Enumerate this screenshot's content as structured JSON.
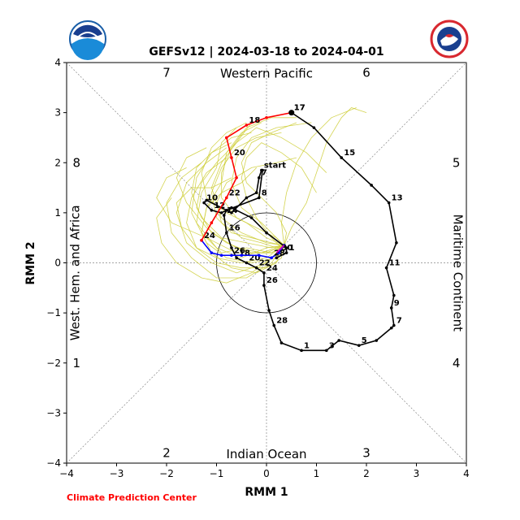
{
  "title": "GEFSv12 | 2024-03-18 to 2024-04-01",
  "credit": "Climate Prediction Center",
  "logos": {
    "left": {
      "text": "NOAA",
      "color": "#1a8bd8"
    },
    "right": {
      "text": "NATIONAL WEATHER SERVICE",
      "color": "#d8282f"
    }
  },
  "chart_data": {
    "type": "line",
    "xlabel": "RMM 1",
    "ylabel": "RMM 2",
    "xlim": [
      -4,
      4
    ],
    "ylim": [
      -4,
      4
    ],
    "xticks": [
      "−4",
      "−3",
      "−2",
      "−1",
      "0",
      "1",
      "2",
      "3",
      "4"
    ],
    "yticks": [
      "−4",
      "−3",
      "−2",
      "−1",
      "0",
      "1",
      "2",
      "3",
      "4"
    ],
    "grid": false,
    "unit_circle_radius": 1,
    "regions": {
      "top": "Western Pacific",
      "bottom": "Indian Ocean",
      "left": "West. Hem. and Africa",
      "right": "Maritime Continent"
    },
    "phases": [
      {
        "label": "1",
        "x": -3.8,
        "y": -2.0
      },
      {
        "label": "2",
        "x": -2.0,
        "y": -3.8
      },
      {
        "label": "3",
        "x": 2.0,
        "y": -3.8
      },
      {
        "label": "4",
        "x": 3.8,
        "y": -2.0
      },
      {
        "label": "5",
        "x": 3.8,
        "y": 2.0
      },
      {
        "label": "6",
        "x": 2.0,
        "y": 3.8
      },
      {
        "label": "7",
        "x": -2.0,
        "y": 3.8
      },
      {
        "label": "8",
        "x": -3.8,
        "y": 2.0
      }
    ],
    "colors": {
      "observed": "#000000",
      "forecast_week1": "#0000ff",
      "forecast_week2": "#ff0000",
      "ensemble": "#cccc33",
      "start_segment": "#cc00cc"
    },
    "series": [
      {
        "role": "observed",
        "points": [
          [
            0.2,
            0.1
          ],
          [
            0.4,
            0.2
          ],
          [
            0.4,
            0.3
          ],
          [
            0.0,
            0.6
          ],
          [
            -0.3,
            0.9
          ],
          [
            -0.7,
            1.1
          ],
          [
            -0.9,
            1.0
          ],
          [
            -1.1,
            1.05
          ],
          [
            -1.25,
            1.2
          ],
          [
            -1.2,
            1.25
          ],
          [
            -0.7,
            1.0
          ],
          [
            -0.4,
            1.3
          ],
          [
            -0.2,
            1.4
          ],
          [
            -0.15,
            1.7
          ],
          [
            -0.1,
            1.85
          ],
          [
            -0.08,
            1.85
          ],
          [
            -0.15,
            1.3
          ],
          [
            -0.8,
            1.05
          ],
          [
            -0.85,
            0.95
          ],
          [
            -0.8,
            0.6
          ],
          [
            -0.7,
            0.3
          ],
          [
            -0.6,
            0.1
          ],
          [
            -0.4,
            0.0
          ],
          [
            -0.2,
            -0.1
          ],
          [
            -0.05,
            -0.2
          ],
          [
            -0.05,
            -0.45
          ],
          [
            0.05,
            -0.95
          ],
          [
            0.15,
            -1.25
          ],
          [
            0.3,
            -1.6
          ],
          [
            0.7,
            -1.75
          ],
          [
            1.2,
            -1.75
          ],
          [
            1.45,
            -1.55
          ],
          [
            1.85,
            -1.65
          ],
          [
            2.2,
            -1.55
          ],
          [
            2.5,
            -1.3
          ],
          [
            2.55,
            -1.25
          ],
          [
            2.5,
            -0.9
          ],
          [
            2.55,
            -0.65
          ],
          [
            2.4,
            -0.1
          ],
          [
            2.6,
            0.4
          ],
          [
            2.45,
            1.2
          ],
          [
            2.1,
            1.55
          ],
          [
            1.5,
            2.1
          ],
          [
            0.95,
            2.7
          ],
          [
            0.5,
            3.0
          ]
        ],
        "labels": [
          {
            "text": "1",
            "at": 1
          },
          {
            "text": "start",
            "at": 14
          },
          {
            "text": "7",
            "at": 13
          },
          {
            "text": "8",
            "at": 16
          },
          {
            "text": "10",
            "at": 8
          },
          {
            "text": "12",
            "at": 7
          },
          {
            "text": "14",
            "at": 18
          },
          {
            "text": "16",
            "at": 19
          },
          {
            "text": "18",
            "at": 21
          },
          {
            "text": "20",
            "at": 22
          },
          {
            "text": "22",
            "at": 23
          },
          {
            "text": "24",
            "at": 24
          },
          {
            "text": "26",
            "at": 25
          },
          {
            "text": "28",
            "at": 27
          },
          {
            "text": "1",
            "at": 29
          },
          {
            "text": "3",
            "at": 30
          },
          {
            "text": "5",
            "at": 32
          },
          {
            "text": "7",
            "at": 35
          },
          {
            "text": "9",
            "at": 36
          },
          {
            "text": "11",
            "at": 38
          },
          {
            "text": "13",
            "at": 40
          },
          {
            "text": "15",
            "at": 42
          },
          {
            "text": "17",
            "at": 44
          }
        ]
      },
      {
        "role": "forecast_week1",
        "points": [
          [
            0.35,
            0.35
          ],
          [
            0.25,
            0.2
          ],
          [
            0.1,
            0.1
          ],
          [
            -0.15,
            0.15
          ],
          [
            -0.5,
            0.15
          ],
          [
            -0.7,
            0.15
          ],
          [
            -0.9,
            0.15
          ],
          [
            -1.1,
            0.2
          ],
          [
            -1.3,
            0.45
          ]
        ],
        "labels": [
          {
            "text": "30",
            "at": 1
          },
          {
            "text": "28",
            "at": 2
          },
          {
            "text": "26",
            "at": 5
          },
          {
            "text": "24",
            "at": 8
          }
        ]
      },
      {
        "role": "forecast_week2",
        "points": [
          [
            -1.3,
            0.45
          ],
          [
            -1.1,
            0.8
          ],
          [
            -0.8,
            1.3
          ],
          [
            -0.6,
            1.7
          ],
          [
            -0.7,
            2.1
          ],
          [
            -0.8,
            2.5
          ],
          [
            -0.4,
            2.75
          ],
          [
            0.0,
            2.9
          ],
          [
            0.5,
            3.0
          ]
        ],
        "labels": [
          {
            "text": "22",
            "at": 2
          },
          {
            "text": "20",
            "at": 4
          },
          {
            "text": "18",
            "at": 6
          },
          {
            "text": "17",
            "at": 8
          }
        ]
      },
      {
        "role": "start_segment",
        "points": [
          [
            0.35,
            0.35
          ],
          [
            0.2,
            0.2
          ]
        ]
      }
    ],
    "ensemble_members": [
      [
        [
          0.35,
          0.35
        ],
        [
          0.1,
          0.2
        ],
        [
          -0.4,
          0.3
        ],
        [
          -0.9,
          0.2
        ],
        [
          -1.3,
          0.6
        ],
        [
          -1.2,
          1.1
        ],
        [
          -0.9,
          1.6
        ],
        [
          -0.8,
          2.2
        ],
        [
          -0.5,
          2.6
        ],
        [
          -0.1,
          2.8
        ]
      ],
      [
        [
          0.35,
          0.35
        ],
        [
          0.0,
          0.3
        ],
        [
          -0.5,
          0.1
        ],
        [
          -1.0,
          0.3
        ],
        [
          -1.4,
          0.8
        ],
        [
          -1.3,
          1.4
        ],
        [
          -1.0,
          1.9
        ],
        [
          -0.9,
          2.4
        ],
        [
          -0.6,
          2.7
        ]
      ],
      [
        [
          0.35,
          0.35
        ],
        [
          0.2,
          0.1
        ],
        [
          -0.3,
          0.0
        ],
        [
          -0.8,
          0.1
        ],
        [
          -1.2,
          0.4
        ],
        [
          -1.5,
          1.0
        ],
        [
          -1.4,
          1.7
        ],
        [
          -1.1,
          2.2
        ],
        [
          -0.7,
          2.5
        ],
        [
          -0.3,
          2.6
        ]
      ],
      [
        [
          0.35,
          0.35
        ],
        [
          0.1,
          0.4
        ],
        [
          -0.3,
          0.5
        ],
        [
          -0.7,
          0.6
        ],
        [
          -1.0,
          0.9
        ],
        [
          -1.1,
          1.4
        ],
        [
          -0.9,
          1.9
        ],
        [
          -0.6,
          2.3
        ],
        [
          -0.2,
          2.5
        ],
        [
          0.3,
          2.6
        ]
      ],
      [
        [
          0.35,
          0.35
        ],
        [
          0.0,
          0.0
        ],
        [
          -0.6,
          -0.2
        ],
        [
          -1.1,
          0.0
        ],
        [
          -1.6,
          0.4
        ],
        [
          -1.8,
          1.0
        ],
        [
          -1.6,
          1.6
        ],
        [
          -1.2,
          2.0
        ],
        [
          -0.8,
          2.3
        ]
      ],
      [
        [
          0.35,
          0.35
        ],
        [
          0.2,
          0.5
        ],
        [
          -0.2,
          0.7
        ],
        [
          -0.6,
          0.9
        ],
        [
          -0.9,
          1.3
        ],
        [
          -0.9,
          1.8
        ],
        [
          -0.7,
          2.3
        ],
        [
          -0.4,
          2.7
        ],
        [
          0.1,
          2.9
        ],
        [
          0.6,
          2.9
        ]
      ],
      [
        [
          0.35,
          0.35
        ],
        [
          0.1,
          0.0
        ],
        [
          -0.4,
          -0.3
        ],
        [
          -1.0,
          -0.3
        ],
        [
          -1.5,
          0.1
        ],
        [
          -1.9,
          0.6
        ],
        [
          -2.0,
          1.2
        ],
        [
          -1.7,
          1.7
        ],
        [
          -1.3,
          2.0
        ]
      ],
      [
        [
          0.35,
          0.35
        ],
        [
          -0.1,
          0.2
        ],
        [
          -0.6,
          0.3
        ],
        [
          -1.1,
          0.6
        ],
        [
          -1.4,
          1.1
        ],
        [
          -1.3,
          1.6
        ],
        [
          -1.0,
          2.0
        ],
        [
          -0.6,
          2.4
        ],
        [
          -0.3,
          2.8
        ]
      ],
      [
        [
          0.35,
          0.35
        ],
        [
          0.3,
          0.1
        ],
        [
          0.0,
          -0.1
        ],
        [
          -0.5,
          -0.1
        ],
        [
          -1.0,
          0.0
        ],
        [
          -1.4,
          0.3
        ],
        [
          -1.6,
          0.8
        ],
        [
          -1.5,
          1.3
        ],
        [
          -1.2,
          1.8
        ],
        [
          -0.8,
          2.1
        ]
      ],
      [
        [
          0.35,
          0.35
        ],
        [
          0.0,
          0.5
        ],
        [
          -0.4,
          0.8
        ],
        [
          -0.8,
          1.0
        ],
        [
          -1.2,
          1.3
        ],
        [
          -1.3,
          1.8
        ],
        [
          -1.1,
          2.3
        ],
        [
          -0.8,
          2.6
        ],
        [
          -0.4,
          2.8
        ]
      ],
      [
        [
          0.35,
          0.35
        ],
        [
          0.1,
          0.2
        ],
        [
          -0.3,
          0.2
        ],
        [
          -0.8,
          0.4
        ],
        [
          -1.2,
          0.7
        ],
        [
          -1.6,
          1.2
        ],
        [
          -1.8,
          1.7
        ],
        [
          -1.6,
          2.1
        ],
        [
          -1.2,
          2.3
        ]
      ],
      [
        [
          0.35,
          0.35
        ],
        [
          0.2,
          0.3
        ],
        [
          -0.1,
          0.4
        ],
        [
          -0.5,
          0.5
        ],
        [
          -0.9,
          0.8
        ],
        [
          -1.0,
          1.2
        ],
        [
          -0.8,
          1.6
        ],
        [
          -0.3,
          1.9
        ],
        [
          0.2,
          2.0
        ],
        [
          0.6,
          2.1
        ]
      ],
      [
        [
          0.35,
          0.35
        ],
        [
          0.0,
          0.1
        ],
        [
          -0.5,
          0.0
        ],
        [
          -1.0,
          0.1
        ],
        [
          -1.4,
          0.3
        ],
        [
          -1.7,
          0.7
        ],
        [
          -1.8,
          1.2
        ],
        [
          -1.5,
          1.5
        ],
        [
          -1.1,
          1.5
        ],
        [
          -0.7,
          1.7
        ]
      ],
      [
        [
          0.35,
          0.35
        ],
        [
          0.4,
          0.6
        ],
        [
          0.2,
          1.0
        ],
        [
          -0.1,
          1.3
        ],
        [
          -0.4,
          1.6
        ],
        [
          -0.5,
          2.0
        ],
        [
          -0.3,
          2.4
        ],
        [
          0.1,
          2.6
        ],
        [
          0.6,
          2.8
        ]
      ],
      [
        [
          0.35,
          0.35
        ],
        [
          0.1,
          0.3
        ],
        [
          -0.4,
          0.4
        ],
        [
          -0.9,
          0.5
        ],
        [
          -1.3,
          0.9
        ],
        [
          -1.5,
          1.4
        ],
        [
          -1.4,
          1.9
        ],
        [
          -1.1,
          2.2
        ],
        [
          -0.7,
          2.4
        ]
      ],
      [
        [
          0.35,
          0.35
        ],
        [
          0.2,
          0.0
        ],
        [
          -0.2,
          -0.2
        ],
        [
          -0.7,
          -0.1
        ],
        [
          -1.1,
          0.2
        ],
        [
          -1.3,
          0.6
        ],
        [
          -1.2,
          1.1
        ],
        [
          -0.9,
          1.4
        ],
        [
          -0.5,
          1.6
        ],
        [
          -0.2,
          1.9
        ]
      ],
      [
        [
          0.35,
          0.35
        ],
        [
          0.5,
          0.7
        ],
        [
          0.8,
          1.2
        ],
        [
          1.0,
          1.8
        ],
        [
          1.2,
          2.4
        ],
        [
          1.5,
          2.9
        ],
        [
          1.7,
          3.1
        ],
        [
          2.0,
          3.0
        ]
      ],
      [
        [
          0.35,
          0.35
        ],
        [
          0.3,
          0.8
        ],
        [
          0.4,
          1.4
        ],
        [
          0.6,
          2.0
        ],
        [
          0.9,
          2.5
        ],
        [
          1.3,
          2.9
        ],
        [
          1.8,
          3.1
        ]
      ],
      [
        [
          0.35,
          0.35
        ],
        [
          0.0,
          0.2
        ],
        [
          -0.6,
          0.2
        ],
        [
          -1.2,
          0.5
        ],
        [
          -1.9,
          0.8
        ],
        [
          -2.2,
          1.3
        ],
        [
          -2.0,
          1.7
        ],
        [
          -1.6,
          1.9
        ]
      ],
      [
        [
          0.35,
          0.35
        ],
        [
          0.1,
          0.1
        ],
        [
          -0.3,
          -0.2
        ],
        [
          -0.8,
          -0.4
        ],
        [
          -1.3,
          -0.3
        ],
        [
          -1.8,
          0.0
        ],
        [
          -2.1,
          0.4
        ],
        [
          -2.2,
          0.9
        ],
        [
          -1.9,
          1.3
        ]
      ],
      [
        [
          0.35,
          0.35
        ],
        [
          0.2,
          0.5
        ],
        [
          -0.1,
          0.8
        ],
        [
          -0.5,
          1.1
        ],
        [
          -0.7,
          1.6
        ],
        [
          -0.6,
          2.1
        ],
        [
          -0.3,
          2.5
        ],
        [
          0.2,
          2.7
        ],
        [
          0.9,
          2.8
        ]
      ],
      [
        [
          0.35,
          0.35
        ],
        [
          0.0,
          0.4
        ],
        [
          -0.5,
          0.6
        ],
        [
          -0.9,
          0.9
        ],
        [
          -1.1,
          1.5
        ],
        [
          -0.9,
          2.0
        ],
        [
          -0.6,
          2.4
        ],
        [
          -0.2,
          2.7
        ],
        [
          0.3,
          2.5
        ],
        [
          0.8,
          2.2
        ],
        [
          1.2,
          1.8
        ]
      ],
      [
        [
          0.35,
          0.35
        ],
        [
          0.3,
          0.3
        ],
        [
          0.1,
          0.5
        ],
        [
          -0.2,
          0.9
        ],
        [
          -0.4,
          1.3
        ],
        [
          -0.5,
          1.7
        ],
        [
          -0.4,
          2.1
        ],
        [
          -0.1,
          2.4
        ],
        [
          0.3,
          2.2
        ],
        [
          0.7,
          1.9
        ],
        [
          1.0,
          1.4
        ]
      ]
    ]
  }
}
